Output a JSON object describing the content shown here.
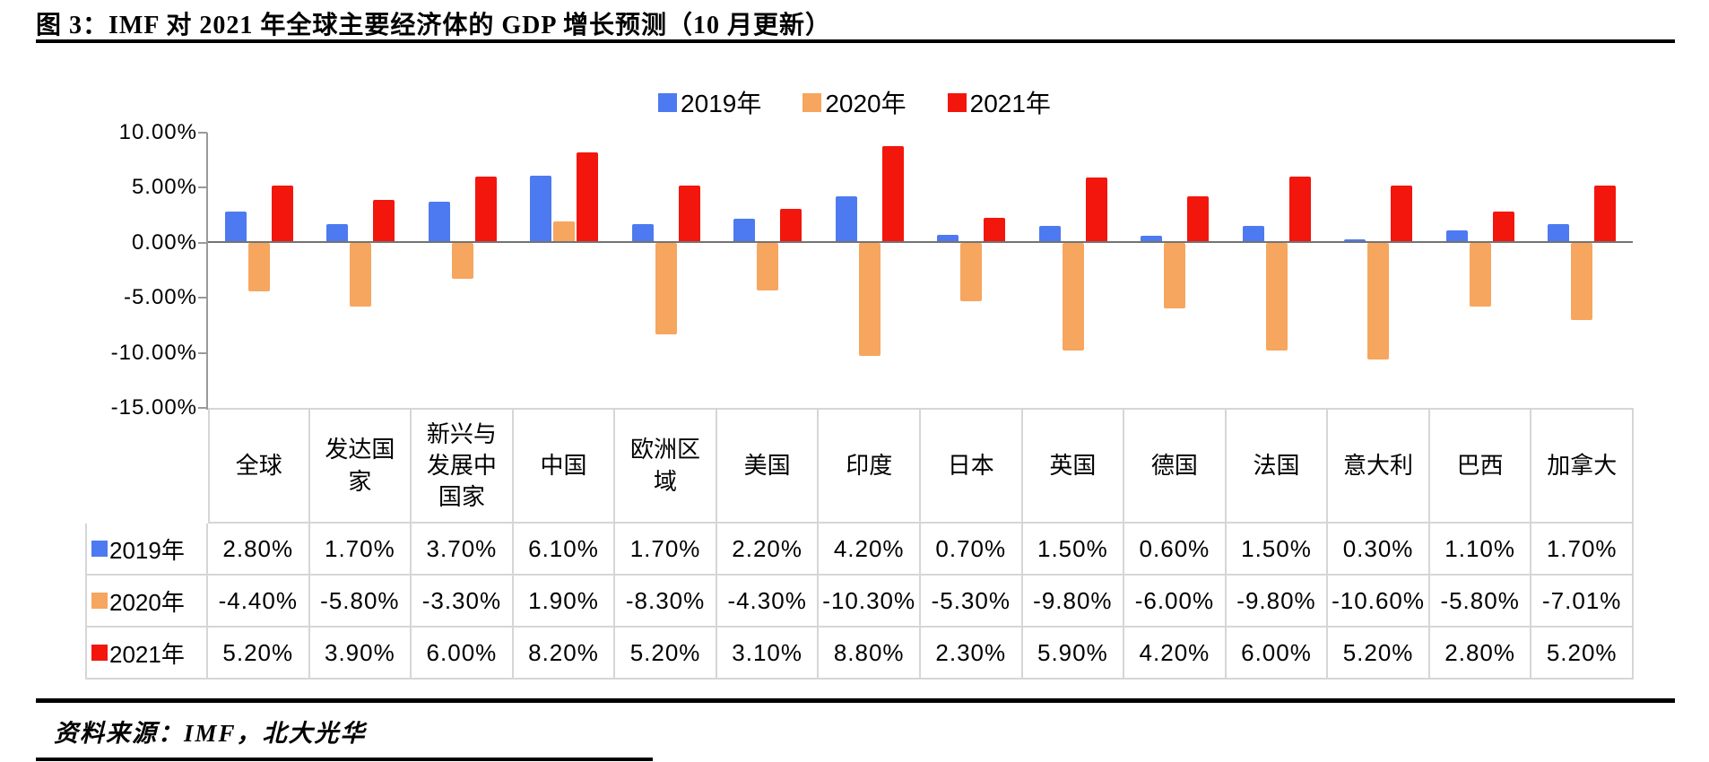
{
  "title": "图 3：IMF 对 2021 年全球主要经济体的 GDP 增长预测（10 月更新）",
  "source": "资料来源：IMF，北大光华",
  "colors": {
    "series_2019": "#4D7AF0",
    "series_2020": "#F6A65E",
    "series_2021": "#F2160D",
    "zero_line": "#737373",
    "axis_line": "#9A9A9A",
    "table_grid": "#D6D6D6",
    "rule": "#000000"
  },
  "chart_data": {
    "type": "bar",
    "title": "",
    "xlabel": "",
    "ylabel": "",
    "categories": [
      "全球",
      "发达国家",
      "新兴与发展中国家",
      "中国",
      "欧洲区域",
      "美国",
      "印度",
      "日本",
      "英国",
      "德国",
      "法国",
      "意大利",
      "巴西",
      "加拿大"
    ],
    "series": [
      {
        "name": "2019年",
        "color": "#4D7AF0",
        "values": [
          2.8,
          1.7,
          3.7,
          6.1,
          1.7,
          2.2,
          4.2,
          0.7,
          1.5,
          0.6,
          1.5,
          0.3,
          1.1,
          1.7
        ],
        "labels": [
          "2.80%",
          "1.70%",
          "3.70%",
          "6.10%",
          "1.70%",
          "2.20%",
          "4.20%",
          "0.70%",
          "1.50%",
          "0.60%",
          "1.50%",
          "0.30%",
          "1.10%",
          "1.70%"
        ]
      },
      {
        "name": "2020年",
        "color": "#F6A65E",
        "values": [
          -4.4,
          -5.8,
          -3.3,
          1.9,
          -8.3,
          -4.3,
          -10.3,
          -5.3,
          -9.8,
          -6.0,
          -9.8,
          -10.6,
          -5.8,
          -7.01
        ],
        "labels": [
          "-4.40%",
          "-5.80%",
          "-3.30%",
          "1.90%",
          "-8.30%",
          "-4.30%",
          "-10.30%",
          "-5.30%",
          "-9.80%",
          "-6.00%",
          "-9.80%",
          "-10.60%",
          "-5.80%",
          "-7.01%"
        ]
      },
      {
        "name": "2021年",
        "color": "#F2160D",
        "values": [
          5.2,
          3.9,
          6.0,
          8.2,
          5.2,
          3.1,
          8.8,
          2.3,
          5.9,
          4.2,
          6.0,
          5.2,
          2.8,
          5.2
        ],
        "labels": [
          "5.20%",
          "3.90%",
          "6.00%",
          "8.20%",
          "5.20%",
          "3.10%",
          "8.80%",
          "2.30%",
          "5.90%",
          "4.20%",
          "6.00%",
          "5.20%",
          "2.80%",
          "5.20%"
        ]
      }
    ],
    "ylim": [
      -15,
      10
    ],
    "ytick_step": 5,
    "ytick_labels": [
      "10.00%",
      "5.00%",
      "0.00%",
      "-5.00%",
      "-10.00%",
      "-15.00%"
    ],
    "grid": "off",
    "legend_position": "top-center",
    "data_table_shown": true
  }
}
